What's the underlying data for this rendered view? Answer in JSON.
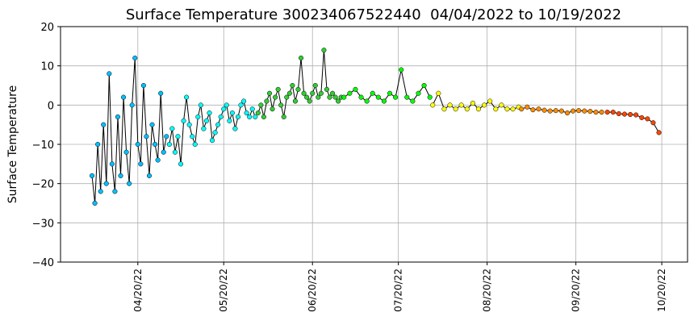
{
  "chart_data": {
    "type": "scatter",
    "title": "Surface Temperature 300234067522440  04/04/2022 to 10/19/2022",
    "y_label": "Surface Temperature",
    "xlim": [
      "2022-03-24",
      "2022-10-29"
    ],
    "xticks": [
      {
        "value": "2022-04-20",
        "label": "04/20/22"
      },
      {
        "value": "2022-05-20",
        "label": "05/20/22"
      },
      {
        "value": "2022-06-20",
        "label": "06/20/22"
      },
      {
        "value": "2022-07-20",
        "label": "07/20/22"
      },
      {
        "value": "2022-08-20",
        "label": "08/20/22"
      },
      {
        "value": "2022-09-20",
        "label": "09/20/22"
      },
      {
        "value": "2022-10-20",
        "label": "10/20/22"
      }
    ],
    "ylim": [
      -40,
      20
    ],
    "yticks": [
      {
        "value": -40,
        "label": "−40"
      },
      {
        "value": -30,
        "label": "−30"
      },
      {
        "value": -20,
        "label": "−20"
      },
      {
        "value": -10,
        "label": "−10"
      },
      0,
      10,
      20
    ],
    "grid": true,
    "series": [
      {
        "color": "#00bfff",
        "x": [
          "2022-04-04",
          "2022-04-05",
          "2022-04-06",
          "2022-04-07",
          "2022-04-08",
          "2022-04-09",
          "2022-04-10",
          "2022-04-11",
          "2022-04-12",
          "2022-04-13",
          "2022-04-14",
          "2022-04-15",
          "2022-04-16",
          "2022-04-17",
          "2022-04-18",
          "2022-04-19",
          "2022-04-20",
          "2022-04-21",
          "2022-04-22",
          "2022-04-23",
          "2022-04-24",
          "2022-04-25",
          "2022-04-26",
          "2022-04-27",
          "2022-04-28",
          "2022-04-29",
          "2022-04-30"
        ],
        "values": [
          -18,
          -25,
          -10,
          -22,
          -5,
          -20,
          8,
          -15,
          -22,
          -3,
          -18,
          2,
          -12,
          -20,
          0,
          12,
          -10,
          -15,
          5,
          -8,
          -18,
          -5,
          -10,
          -14,
          3,
          -12,
          -8
        ]
      },
      {
        "color": "#00ffff",
        "x": [
          "2022-05-01",
          "2022-05-02",
          "2022-05-03",
          "2022-05-04",
          "2022-05-05",
          "2022-05-06",
          "2022-05-07",
          "2022-05-08",
          "2022-05-09",
          "2022-05-10",
          "2022-05-11",
          "2022-05-12",
          "2022-05-13",
          "2022-05-14",
          "2022-05-15",
          "2022-05-16",
          "2022-05-17",
          "2022-05-18",
          "2022-05-19",
          "2022-05-20",
          "2022-05-21",
          "2022-05-22",
          "2022-05-23",
          "2022-05-24",
          "2022-05-25",
          "2022-05-26",
          "2022-05-27",
          "2022-05-28",
          "2022-05-29",
          "2022-05-30",
          "2022-05-31"
        ],
        "values": [
          -10,
          -6,
          -12,
          -8,
          -15,
          -4,
          2,
          -5,
          -8,
          -10,
          -3,
          0,
          -6,
          -4,
          -2,
          -9,
          -7,
          -5,
          -3,
          -1,
          0,
          -4,
          -2,
          -6,
          -3,
          0,
          1,
          -2,
          -3,
          -1,
          -3
        ]
      },
      {
        "color": "#32cd32",
        "x": [
          "2022-06-01",
          "2022-06-02",
          "2022-06-03",
          "2022-06-04",
          "2022-06-05",
          "2022-06-06",
          "2022-06-07",
          "2022-06-08",
          "2022-06-09",
          "2022-06-10",
          "2022-06-11",
          "2022-06-12",
          "2022-06-13",
          "2022-06-14",
          "2022-06-15",
          "2022-06-16",
          "2022-06-17",
          "2022-06-18",
          "2022-06-19",
          "2022-06-20",
          "2022-06-21",
          "2022-06-22",
          "2022-06-23",
          "2022-06-24",
          "2022-06-25",
          "2022-06-26",
          "2022-06-27",
          "2022-06-28",
          "2022-06-29",
          "2022-06-30"
        ],
        "values": [
          -2,
          0,
          -3,
          1,
          3,
          -1,
          2,
          4,
          0,
          -3,
          2,
          3,
          5,
          1,
          4,
          12,
          3,
          2,
          1,
          3,
          5,
          2,
          3,
          14,
          4,
          2,
          3,
          2,
          1,
          2
        ]
      },
      {
        "color": "#00ff00",
        "x": [
          "2022-07-01",
          "2022-07-03",
          "2022-07-05",
          "2022-07-07",
          "2022-07-09",
          "2022-07-11",
          "2022-07-13",
          "2022-07-15",
          "2022-07-17",
          "2022-07-19",
          "2022-07-21",
          "2022-07-23",
          "2022-07-25",
          "2022-07-27",
          "2022-07-29",
          "2022-07-31"
        ],
        "values": [
          2,
          3,
          4,
          2,
          1,
          3,
          2,
          1,
          3,
          2,
          9,
          2,
          1,
          3,
          5,
          2
        ]
      },
      {
        "color": "#ffff00",
        "x": [
          "2022-08-01",
          "2022-08-03",
          "2022-08-05",
          "2022-08-07",
          "2022-08-09",
          "2022-08-11",
          "2022-08-13",
          "2022-08-15",
          "2022-08-17",
          "2022-08-19",
          "2022-08-21",
          "2022-08-23",
          "2022-08-25",
          "2022-08-27",
          "2022-08-29",
          "2022-08-31"
        ],
        "values": [
          0,
          3,
          -1,
          0,
          -1,
          0,
          -1,
          0.5,
          -1,
          0,
          1,
          -1,
          0,
          -1,
          -1,
          -0.5
        ]
      },
      {
        "color": "#ff8c00",
        "x": [
          "2022-09-01",
          "2022-09-03",
          "2022-09-05",
          "2022-09-07",
          "2022-09-09",
          "2022-09-11",
          "2022-09-13",
          "2022-09-15",
          "2022-09-17",
          "2022-09-19",
          "2022-09-21",
          "2022-09-23",
          "2022-09-25",
          "2022-09-27",
          "2022-09-29"
        ],
        "values": [
          -1,
          -0.5,
          -1.2,
          -1,
          -1.3,
          -1.5,
          -1.4,
          -1.5,
          -2,
          -1.5,
          -1.4,
          -1.5,
          -1.6,
          -1.8,
          -1.8
        ]
      },
      {
        "color": "#ff4500",
        "x": [
          "2022-10-01",
          "2022-10-03",
          "2022-10-05",
          "2022-10-07",
          "2022-10-09",
          "2022-10-11",
          "2022-10-13",
          "2022-10-15",
          "2022-10-17",
          "2022-10-19"
        ],
        "values": [
          -1.8,
          -1.8,
          -2.2,
          -2.3,
          -2.4,
          -2.5,
          -3.2,
          -3.5,
          -4.5,
          -7
        ]
      }
    ]
  }
}
